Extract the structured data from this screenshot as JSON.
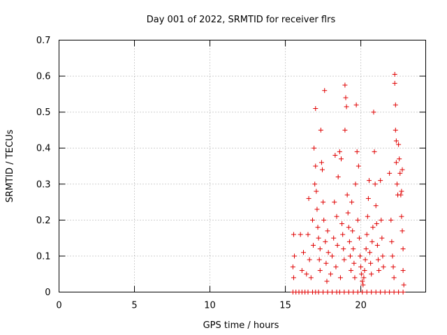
{
  "chart_data": {
    "type": "scatter",
    "title": "Day 001 of 2022, SRMTID for receiver flrs",
    "xlabel": "GPS time / hours",
    "ylabel": "SRMTID / TECUs",
    "xlim": [
      0,
      24.3
    ],
    "ylim": [
      0,
      0.7
    ],
    "grid": true,
    "x_ticks": [
      0,
      5,
      10,
      15,
      20
    ],
    "x_tick_labels": [
      "0",
      "5",
      "10",
      "15",
      "20"
    ],
    "y_ticks": [
      0,
      0.1,
      0.2,
      0.3,
      0.4,
      0.5,
      0.6,
      0.7
    ],
    "y_tick_labels": [
      "0",
      "0.1",
      "0.2",
      "0.3",
      "0.4",
      "0.5",
      "0.6",
      "0.7"
    ],
    "marker": "+",
    "series": [
      {
        "name": "SRMTID",
        "color": "#e00000",
        "points": [
          [
            15.5,
            0.0
          ],
          [
            15.7,
            0.0
          ],
          [
            15.9,
            0.0
          ],
          [
            16.1,
            0.0
          ],
          [
            16.3,
            0.0
          ],
          [
            16.5,
            0.0
          ],
          [
            16.8,
            0.0
          ],
          [
            17.0,
            0.0
          ],
          [
            17.2,
            0.0
          ],
          [
            17.5,
            0.0
          ],
          [
            17.8,
            0.0
          ],
          [
            18.1,
            0.0
          ],
          [
            18.4,
            0.0
          ],
          [
            18.6,
            0.0
          ],
          [
            18.9,
            0.0
          ],
          [
            19.2,
            0.0
          ],
          [
            19.5,
            0.0
          ],
          [
            19.8,
            0.0
          ],
          [
            20.1,
            0.0
          ],
          [
            20.4,
            0.0
          ],
          [
            20.7,
            0.0
          ],
          [
            21.0,
            0.0
          ],
          [
            21.3,
            0.0
          ],
          [
            21.6,
            0.0
          ],
          [
            21.9,
            0.0
          ],
          [
            22.2,
            0.0
          ],
          [
            22.5,
            0.0
          ],
          [
            22.8,
            0.0
          ],
          [
            15.55,
            0.16
          ],
          [
            15.6,
            0.1
          ],
          [
            15.5,
            0.07
          ],
          [
            15.55,
            0.04
          ],
          [
            16.0,
            0.16
          ],
          [
            16.1,
            0.06
          ],
          [
            16.2,
            0.11
          ],
          [
            16.4,
            0.05
          ],
          [
            16.5,
            0.16
          ],
          [
            16.55,
            0.26
          ],
          [
            16.6,
            0.09
          ],
          [
            16.7,
            0.04
          ],
          [
            16.8,
            0.2
          ],
          [
            16.85,
            0.13
          ],
          [
            16.9,
            0.4
          ],
          [
            16.95,
            0.3
          ],
          [
            17.0,
            0.35
          ],
          [
            17.0,
            0.51
          ],
          [
            17.05,
            0.28
          ],
          [
            17.1,
            0.23
          ],
          [
            17.15,
            0.18
          ],
          [
            17.2,
            0.15
          ],
          [
            17.25,
            0.09
          ],
          [
            17.3,
            0.06
          ],
          [
            17.3,
            0.12
          ],
          [
            17.35,
            0.45
          ],
          [
            17.4,
            0.36
          ],
          [
            17.45,
            0.34
          ],
          [
            17.5,
            0.25
          ],
          [
            17.55,
            0.2
          ],
          [
            17.6,
            0.56
          ],
          [
            17.65,
            0.14
          ],
          [
            17.7,
            0.08
          ],
          [
            17.75,
            0.03
          ],
          [
            17.8,
            0.17
          ],
          [
            17.85,
            0.11
          ],
          [
            18.0,
            0.05
          ],
          [
            18.1,
            0.1
          ],
          [
            18.2,
            0.15
          ],
          [
            18.25,
            0.25
          ],
          [
            18.3,
            0.38
          ],
          [
            18.35,
            0.07
          ],
          [
            18.4,
            0.21
          ],
          [
            18.45,
            0.13
          ],
          [
            18.5,
            0.32
          ],
          [
            18.6,
            0.39
          ],
          [
            18.65,
            0.04
          ],
          [
            18.7,
            0.37
          ],
          [
            18.75,
            0.19
          ],
          [
            18.8,
            0.16
          ],
          [
            18.85,
            0.12
          ],
          [
            18.9,
            0.09
          ],
          [
            18.95,
            0.45
          ],
          [
            18.95,
            0.575
          ],
          [
            19.0,
            0.54
          ],
          [
            19.05,
            0.515
          ],
          [
            19.1,
            0.27
          ],
          [
            19.15,
            0.22
          ],
          [
            19.2,
            0.18
          ],
          [
            19.25,
            0.14
          ],
          [
            19.3,
            0.1
          ],
          [
            19.35,
            0.06
          ],
          [
            19.4,
            0.25
          ],
          [
            19.45,
            0.17
          ],
          [
            19.5,
            0.12
          ],
          [
            19.55,
            0.08
          ],
          [
            19.6,
            0.04
          ],
          [
            19.65,
            0.3
          ],
          [
            19.7,
            0.52
          ],
          [
            19.75,
            0.39
          ],
          [
            19.8,
            0.2
          ],
          [
            19.85,
            0.35
          ],
          [
            19.9,
            0.15
          ],
          [
            19.95,
            0.1
          ],
          [
            20.0,
            0.07
          ],
          [
            20.05,
            0.05
          ],
          [
            20.1,
            0.03
          ],
          [
            20.15,
            0.02
          ],
          [
            20.2,
            0.04
          ],
          [
            20.25,
            0.06
          ],
          [
            20.3,
            0.09
          ],
          [
            20.35,
            0.12
          ],
          [
            20.4,
            0.16
          ],
          [
            20.45,
            0.21
          ],
          [
            20.5,
            0.26
          ],
          [
            20.55,
            0.31
          ],
          [
            20.6,
            0.11
          ],
          [
            20.65,
            0.08
          ],
          [
            20.7,
            0.05
          ],
          [
            20.75,
            0.14
          ],
          [
            20.8,
            0.18
          ],
          [
            20.85,
            0.5
          ],
          [
            20.9,
            0.39
          ],
          [
            20.95,
            0.3
          ],
          [
            21.0,
            0.24
          ],
          [
            21.05,
            0.19
          ],
          [
            21.1,
            0.13
          ],
          [
            21.15,
            0.09
          ],
          [
            21.2,
            0.06
          ],
          [
            21.3,
            0.31
          ],
          [
            21.35,
            0.2
          ],
          [
            21.4,
            0.15
          ],
          [
            21.45,
            0.1
          ],
          [
            21.5,
            0.07
          ],
          [
            21.9,
            0.33
          ],
          [
            22.0,
            0.2
          ],
          [
            22.05,
            0.14
          ],
          [
            22.1,
            0.1
          ],
          [
            22.15,
            0.07
          ],
          [
            22.2,
            0.04
          ],
          [
            22.25,
            0.605
          ],
          [
            22.25,
            0.58
          ],
          [
            22.3,
            0.52
          ],
          [
            22.3,
            0.45
          ],
          [
            22.35,
            0.42
          ],
          [
            22.35,
            0.36
          ],
          [
            22.4,
            0.3
          ],
          [
            22.45,
            0.27
          ],
          [
            22.5,
            0.41
          ],
          [
            22.55,
            0.37
          ],
          [
            22.6,
            0.33
          ],
          [
            22.65,
            0.27
          ],
          [
            22.7,
            0.21
          ],
          [
            22.75,
            0.17
          ],
          [
            22.8,
            0.12
          ],
          [
            22.8,
            0.06
          ],
          [
            22.85,
            0.02
          ],
          [
            22.75,
            0.34
          ],
          [
            22.7,
            0.28
          ]
        ]
      }
    ]
  }
}
